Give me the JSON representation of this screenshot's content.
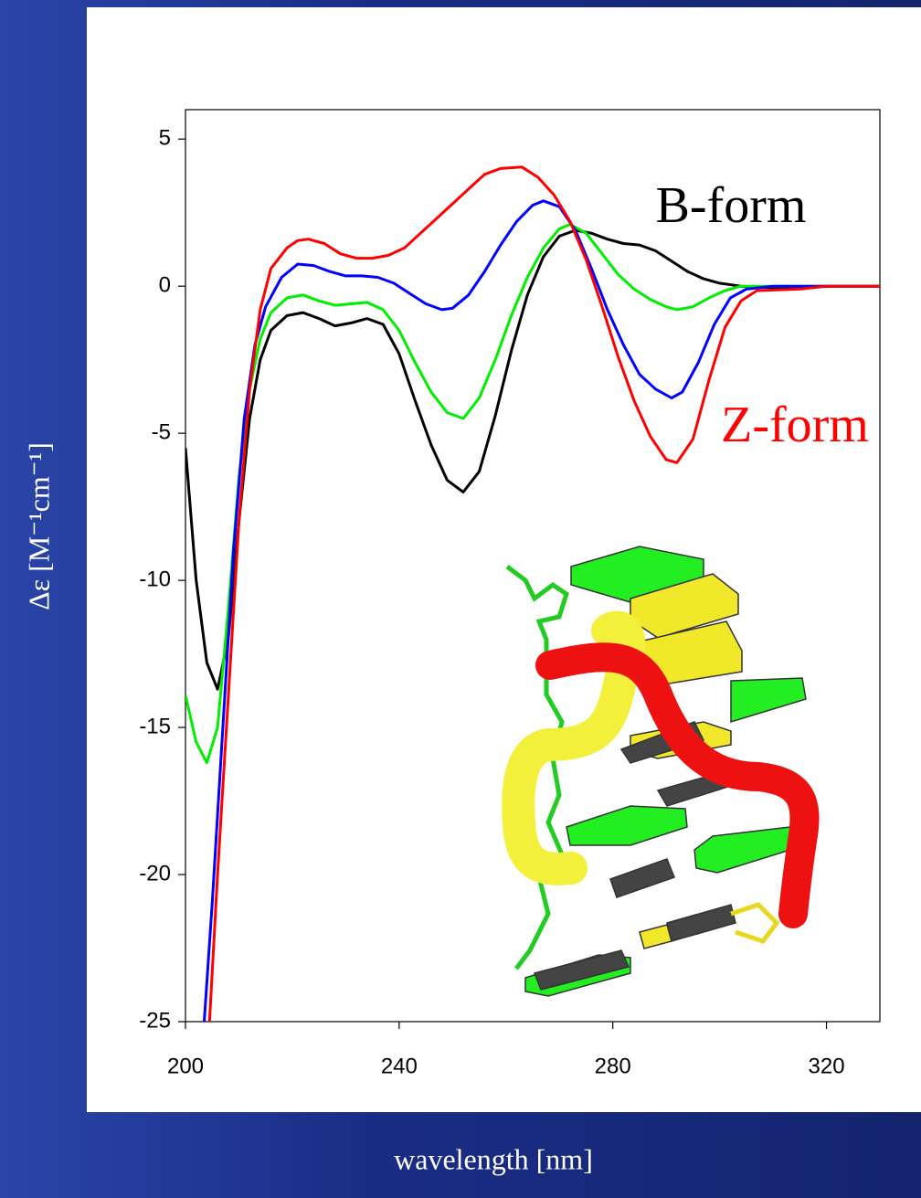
{
  "chart_data": {
    "type": "line",
    "xlabel": "wavelength [nm]",
    "ylabel": "Δε [M⁻¹cm⁻¹]",
    "annotations": [
      {
        "text": "B-form",
        "color": "#000000"
      },
      {
        "text": "Z-form",
        "color": "#ff0000"
      }
    ],
    "xlim": [
      200,
      330
    ],
    "ylim": [
      -25,
      6
    ],
    "xticks": [
      200,
      240,
      280,
      320
    ],
    "yticks": [
      5,
      0,
      -5,
      -10,
      -15,
      -20,
      -25
    ],
    "series": [
      {
        "color": "#000000",
        "x": [
          200,
          202,
          204,
          206,
          208,
          210,
          212,
          214,
          216,
          219,
          222,
          225,
          228,
          231,
          234,
          237,
          240,
          243,
          246,
          249,
          252,
          255,
          258,
          261,
          264,
          267,
          270,
          273,
          276,
          279,
          282,
          285,
          288,
          291,
          294,
          297,
          300,
          304,
          310,
          320,
          330
        ],
        "values": [
          -5.5,
          -10,
          -12.8,
          -13.7,
          -12,
          -8,
          -4.5,
          -2.5,
          -1.5,
          -1.0,
          -0.9,
          -1.1,
          -1.35,
          -1.25,
          -1.1,
          -1.3,
          -2.3,
          -3.9,
          -5.4,
          -6.6,
          -7.0,
          -6.3,
          -4.4,
          -2.2,
          -0.3,
          1.0,
          1.7,
          1.9,
          1.8,
          1.6,
          1.45,
          1.4,
          1.2,
          0.85,
          0.5,
          0.25,
          0.1,
          0,
          -0.05,
          0,
          0
        ]
      },
      {
        "color": "#00ee00",
        "x": [
          200,
          202,
          204,
          206,
          208,
          210,
          212,
          214,
          216,
          219,
          222,
          225,
          228,
          231,
          234,
          237,
          240,
          243,
          246,
          249,
          252,
          255,
          258,
          261,
          264,
          267,
          270,
          272,
          275,
          278,
          281,
          284,
          287,
          290,
          292,
          295,
          298,
          301,
          304,
          310,
          330
        ],
        "values": [
          -13.9,
          -15.5,
          -16.2,
          -15,
          -11,
          -6.5,
          -3.5,
          -1.8,
          -0.9,
          -0.4,
          -0.3,
          -0.5,
          -0.65,
          -0.6,
          -0.55,
          -0.8,
          -1.5,
          -2.6,
          -3.6,
          -4.3,
          -4.5,
          -3.8,
          -2.5,
          -1.0,
          0.3,
          1.3,
          1.95,
          2.1,
          1.8,
          1.1,
          0.4,
          -0.1,
          -0.45,
          -0.7,
          -0.8,
          -0.7,
          -0.4,
          -0.15,
          0,
          0,
          0
        ]
      },
      {
        "color": "#0000ff",
        "x": [
          203.5,
          205,
          207,
          209,
          211,
          213,
          215,
          218,
          221,
          224,
          227,
          230,
          233,
          236,
          239,
          242,
          245,
          248,
          250,
          253,
          256,
          259,
          262,
          265,
          267,
          270,
          273,
          276,
          279,
          282,
          285,
          288,
          291,
          293,
          296,
          299,
          302,
          305,
          310,
          330
        ],
        "values": [
          -25,
          -21,
          -15,
          -9,
          -4.5,
          -2,
          -0.7,
          0.3,
          0.75,
          0.7,
          0.5,
          0.35,
          0.35,
          0.3,
          0.1,
          -0.25,
          -0.6,
          -0.8,
          -0.75,
          -0.3,
          0.5,
          1.4,
          2.2,
          2.75,
          2.9,
          2.7,
          1.9,
          0.6,
          -0.8,
          -2.0,
          -3.0,
          -3.5,
          -3.8,
          -3.6,
          -2.6,
          -1.3,
          -0.4,
          -0.1,
          0,
          0
        ]
      },
      {
        "color": "#ff0000",
        "x": [
          204.5,
          206,
          208,
          210,
          212,
          214,
          216,
          219,
          221,
          223,
          226,
          229,
          232,
          235,
          238,
          241,
          244,
          247,
          250,
          253,
          256,
          259,
          263,
          266,
          269,
          272,
          275,
          278,
          281,
          284,
          287,
          290,
          292,
          295,
          298,
          301,
          304,
          307,
          315,
          320,
          330
        ],
        "values": [
          -25,
          -20,
          -14,
          -8,
          -3.5,
          -0.8,
          0.6,
          1.3,
          1.55,
          1.6,
          1.45,
          1.1,
          0.95,
          0.95,
          1.05,
          1.3,
          1.8,
          2.3,
          2.8,
          3.3,
          3.8,
          4.0,
          4.05,
          3.7,
          3.1,
          2.2,
          0.9,
          -0.7,
          -2.4,
          -3.9,
          -5.1,
          -5.9,
          -6.0,
          -5.2,
          -3.2,
          -1.4,
          -0.5,
          -0.15,
          -0.1,
          0,
          0
        ]
      }
    ]
  }
}
